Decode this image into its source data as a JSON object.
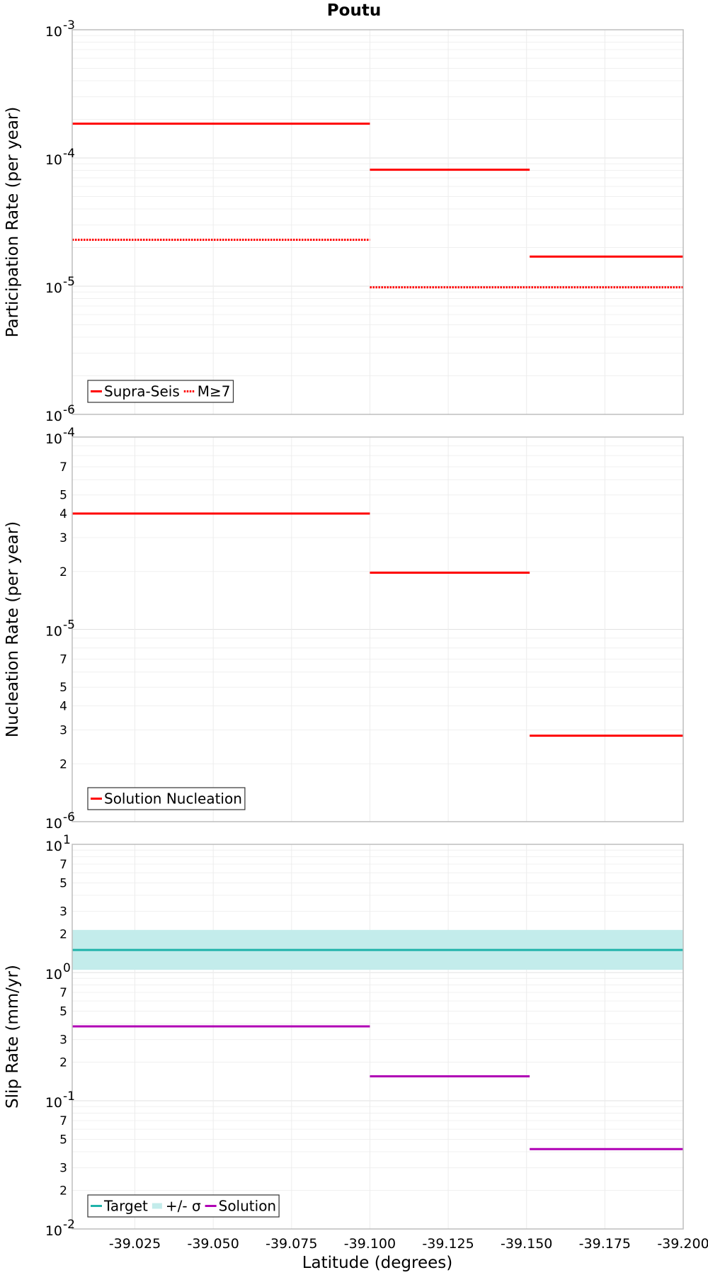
{
  "chart_data": {
    "type": "line",
    "title": "Poutu",
    "xlabel": "Latitude (degrees)",
    "x_ticks": [
      "-39.025",
      "-39.050",
      "-39.075",
      "-39.100",
      "-39.125",
      "-39.150",
      "-39.175",
      "-39.200"
    ],
    "x_tick_values": [
      -39.025,
      -39.05,
      -39.075,
      -39.1,
      -39.125,
      -39.15,
      -39.175,
      -39.2
    ],
    "xlim": [
      -39.005,
      -39.2
    ],
    "grid": true,
    "panels": [
      {
        "ylabel": "Participation Rate (per year)",
        "yscale": "log",
        "ylim": [
          1e-06,
          0.001
        ],
        "major_ticks": [
          {
            "value": 0.001,
            "base": "10",
            "exp": "-3"
          },
          {
            "value": 0.0001,
            "base": "10",
            "exp": "-4"
          },
          {
            "value": 1e-05,
            "base": "10",
            "exp": "-5"
          },
          {
            "value": 1e-06,
            "base": "10",
            "exp": "-6"
          }
        ],
        "minor_ticks": [],
        "legend": {
          "position": "bottom-left",
          "entries": [
            {
              "label": "Supra-Seis",
              "style": "solid",
              "color": "#ff0000"
            },
            {
              "label": "M≥7",
              "style": "dotted",
              "color": "#ff0000"
            }
          ]
        },
        "series": [
          {
            "name": "Supra-Seis",
            "color": "#ff0000",
            "style": "solid",
            "segments": [
              {
                "x": [
                  -39.005,
                  -39.1
                ],
                "y": 0.000185
              },
              {
                "x": [
                  -39.1,
                  -39.151
                ],
                "y": 8.1e-05
              },
              {
                "x": [
                  -39.151,
                  -39.2
                ],
                "y": 1.7e-05
              }
            ]
          },
          {
            "name": "M≥7",
            "color": "#ff0000",
            "style": "dotted",
            "segments": [
              {
                "x": [
                  -39.005,
                  -39.1
                ],
                "y": 2.3e-05
              },
              {
                "x": [
                  -39.1,
                  -39.2
                ],
                "y": 9.8e-06
              }
            ]
          }
        ]
      },
      {
        "ylabel": "Nucleation Rate (per year)",
        "yscale": "log",
        "ylim": [
          1e-06,
          0.0001
        ],
        "major_ticks": [
          {
            "value": 0.0001,
            "base": "10",
            "exp": "-4"
          },
          {
            "value": 1e-05,
            "base": "10",
            "exp": "-5"
          },
          {
            "value": 1e-06,
            "base": "10",
            "exp": "-6"
          }
        ],
        "minor_ticks": [
          {
            "value": 7e-05,
            "label": "7"
          },
          {
            "value": 5e-05,
            "label": "5"
          },
          {
            "value": 4e-05,
            "label": "4"
          },
          {
            "value": 3e-05,
            "label": "3"
          },
          {
            "value": 2e-05,
            "label": "2"
          },
          {
            "value": 7e-06,
            "label": "7"
          },
          {
            "value": 5e-06,
            "label": "5"
          },
          {
            "value": 4e-06,
            "label": "4"
          },
          {
            "value": 3e-06,
            "label": "3"
          },
          {
            "value": 2e-06,
            "label": "2"
          }
        ],
        "legend": {
          "position": "bottom-left",
          "entries": [
            {
              "label": "Solution Nucleation",
              "style": "solid",
              "color": "#ff0000"
            }
          ]
        },
        "series": [
          {
            "name": "Solution Nucleation",
            "color": "#ff0000",
            "style": "solid",
            "segments": [
              {
                "x": [
                  -39.005,
                  -39.1
                ],
                "y": 4e-05
              },
              {
                "x": [
                  -39.1,
                  -39.151
                ],
                "y": 1.97e-05
              },
              {
                "x": [
                  -39.151,
                  -39.2
                ],
                "y": 2.8e-06
              }
            ]
          }
        ]
      },
      {
        "ylabel": "Slip Rate (mm/yr)",
        "yscale": "log",
        "ylim": [
          0.01,
          10
        ],
        "major_ticks": [
          {
            "value": 10,
            "base": "10",
            "exp": "1"
          },
          {
            "value": 1,
            "base": "10",
            "exp": "0"
          },
          {
            "value": 0.1,
            "base": "10",
            "exp": "-1"
          },
          {
            "value": 0.01,
            "base": "10",
            "exp": "-2"
          }
        ],
        "minor_ticks": [
          {
            "value": 7,
            "label": "7"
          },
          {
            "value": 5,
            "label": "5"
          },
          {
            "value": 3,
            "label": "3"
          },
          {
            "value": 2,
            "label": "2"
          },
          {
            "value": 0.7,
            "label": "7"
          },
          {
            "value": 0.5,
            "label": "5"
          },
          {
            "value": 0.3,
            "label": "3"
          },
          {
            "value": 0.2,
            "label": "2"
          },
          {
            "value": 0.07,
            "label": "7"
          },
          {
            "value": 0.05,
            "label": "5"
          },
          {
            "value": 0.03,
            "label": "3"
          },
          {
            "value": 0.02,
            "label": "2"
          }
        ],
        "legend": {
          "position": "bottom-left",
          "entries": [
            {
              "label": "Target",
              "style": "solid",
              "color": "#1fb3aa"
            },
            {
              "label": "+/- σ",
              "style": "band",
              "color": "#c3eceb"
            },
            {
              "label": "Solution",
              "style": "solid",
              "color": "#b000b5"
            }
          ]
        },
        "band": {
          "name": "+/- σ",
          "color": "#c3eceb",
          "y_low": 1.05,
          "y_high": 2.15
        },
        "series": [
          {
            "name": "Target",
            "color": "#1fb3aa",
            "style": "solid",
            "segments": [
              {
                "x": [
                  -39.005,
                  -39.2
                ],
                "y": 1.5
              }
            ]
          },
          {
            "name": "Solution",
            "color": "#b000b5",
            "style": "solid",
            "segments": [
              {
                "x": [
                  -39.005,
                  -39.1
                ],
                "y": 0.38
              },
              {
                "x": [
                  -39.1,
                  -39.151
                ],
                "y": 0.155
              },
              {
                "x": [
                  -39.151,
                  -39.2
                ],
                "y": 0.042
              }
            ]
          }
        ]
      }
    ]
  }
}
